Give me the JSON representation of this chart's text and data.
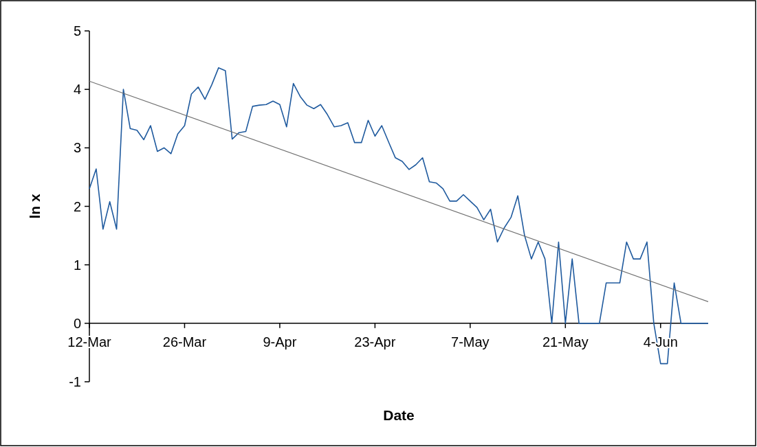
{
  "chart_data": {
    "type": "line",
    "xlabel": "Date",
    "ylabel": "ln x",
    "xlim": [
      "--03-12",
      "--06-11"
    ],
    "xticks": [
      {
        "value": "--03-12",
        "label": "12-Mar"
      },
      {
        "value": "--03-26",
        "label": "26-Mar"
      },
      {
        "value": "--04-09",
        "label": "9-Apr"
      },
      {
        "value": "--04-23",
        "label": "23-Apr"
      },
      {
        "value": "--05-07",
        "label": "7-May"
      },
      {
        "value": "--05-21",
        "label": "21-May"
      },
      {
        "value": "--06-04",
        "label": "4-Jun"
      }
    ],
    "ylim": [
      -1,
      5
    ],
    "yticks": [
      -1,
      0,
      1,
      2,
      3,
      4,
      5
    ],
    "grid": false,
    "marker": "none",
    "x": [
      "--03-12",
      "--03-13",
      "--03-14",
      "--03-15",
      "--03-16",
      "--03-17",
      "--03-18",
      "--03-19",
      "--03-20",
      "--03-21",
      "--03-22",
      "--03-23",
      "--03-24",
      "--03-25",
      "--03-26",
      "--03-27",
      "--03-28",
      "--03-29",
      "--03-30",
      "--03-31",
      "--04-01",
      "--04-02",
      "--04-03",
      "--04-04",
      "--04-05",
      "--04-06",
      "--04-07",
      "--04-08",
      "--04-09",
      "--04-10",
      "--04-11",
      "--04-12",
      "--04-13",
      "--04-14",
      "--04-15",
      "--04-16",
      "--04-17",
      "--04-18",
      "--04-19",
      "--04-20",
      "--04-21",
      "--04-22",
      "--04-23",
      "--04-24",
      "--04-25",
      "--04-26",
      "--04-27",
      "--04-28",
      "--04-29",
      "--04-30",
      "--05-01",
      "--05-02",
      "--05-03",
      "--05-04",
      "--05-05",
      "--05-06",
      "--05-07",
      "--05-08",
      "--05-09",
      "--05-10",
      "--05-11",
      "--05-12",
      "--05-13",
      "--05-14",
      "--05-15",
      "--05-16",
      "--05-17",
      "--05-18",
      "--05-19",
      "--05-20",
      "--05-21",
      "--05-22",
      "--05-23",
      "--05-24",
      "--05-25",
      "--05-26",
      "--05-27",
      "--05-28",
      "--05-29",
      "--05-30",
      "--05-31",
      "--06-01",
      "--06-02",
      "--06-03",
      "--06-04",
      "--06-05",
      "--06-06",
      "--06-07",
      "--06-08",
      "--06-09",
      "--06-10",
      "--06-11"
    ],
    "series": [
      {
        "color": "#1f5a9e",
        "line_style": "solid",
        "values": [
          2.3,
          2.64,
          1.61,
          2.08,
          1.61,
          4.0,
          3.33,
          3.3,
          3.14,
          3.38,
          2.94,
          3.0,
          2.9,
          3.24,
          3.38,
          3.92,
          4.04,
          3.83,
          4.08,
          4.37,
          4.32,
          3.15,
          3.26,
          3.28,
          3.71,
          3.73,
          3.74,
          3.8,
          3.74,
          3.36,
          4.1,
          3.88,
          3.73,
          3.67,
          3.74,
          3.57,
          3.36,
          3.38,
          3.43,
          3.09,
          3.09,
          3.47,
          3.2,
          3.38,
          3.1,
          2.83,
          2.77,
          2.63,
          2.71,
          2.83,
          2.42,
          2.4,
          2.3,
          2.09,
          2.09,
          2.2,
          2.09,
          1.98,
          1.77,
          1.95,
          1.39,
          1.63,
          1.81,
          2.18,
          1.5,
          1.1,
          1.39,
          1.1,
          0,
          1.39,
          0,
          1.1,
          0,
          0,
          0,
          0,
          0.69,
          0.69,
          0.69,
          1.39,
          1.1,
          1.1,
          1.39,
          0,
          -0.69,
          -0.69,
          0.69,
          0,
          0,
          0,
          0,
          0
        ]
      },
      {
        "type": "line",
        "color": "#707070",
        "line_style": "solid",
        "x": [
          "--03-12",
          "--06-11"
        ],
        "values": [
          4.14,
          0.37
        ]
      }
    ]
  }
}
